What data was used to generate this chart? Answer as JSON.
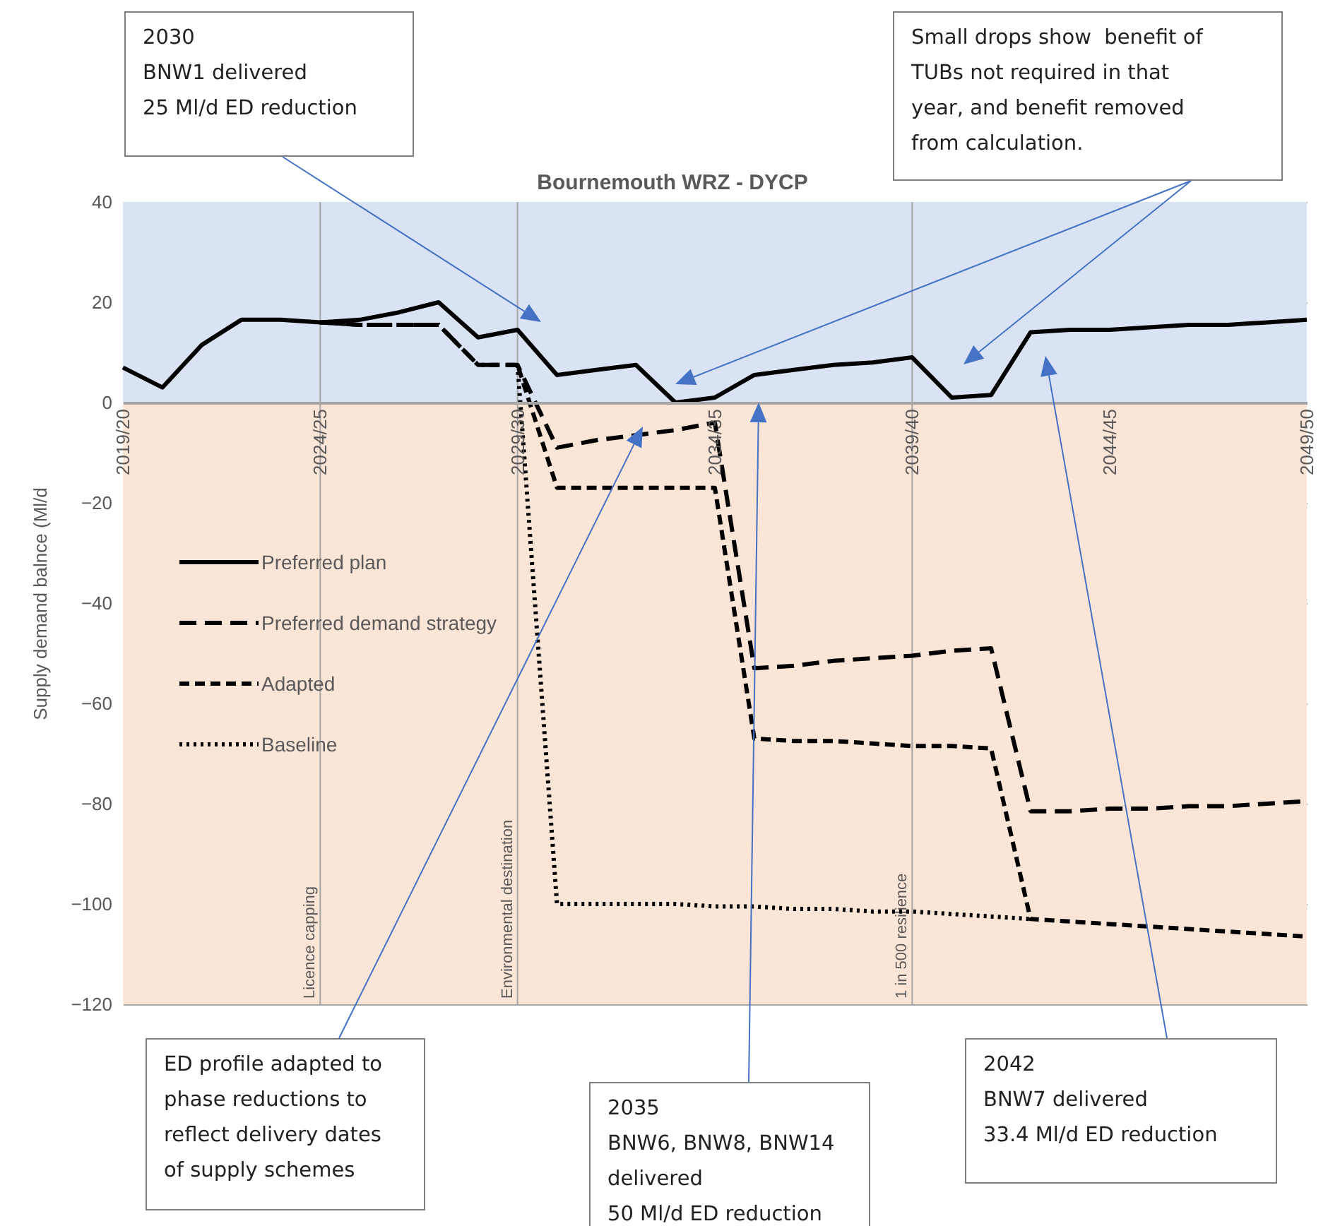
{
  "chart_data": {
    "type": "line",
    "title": "Bournemouth WRZ - DYCP",
    "ylabel": "Supply demand balnce (Ml/d",
    "categories": [
      "2019/20",
      null,
      null,
      null,
      null,
      "2024/25",
      null,
      null,
      null,
      null,
      "2029/30",
      null,
      null,
      null,
      null,
      "2034/35",
      null,
      null,
      null,
      null,
      "2039/40",
      null,
      null,
      null,
      null,
      "2044/45",
      null,
      null,
      null,
      null,
      "2049/50"
    ],
    "series": [
      {
        "name": "Preferred plan",
        "color": "#000000",
        "line_style": "solid",
        "values": [
          7,
          3,
          11.5,
          16.5,
          16.5,
          16,
          16.5,
          18,
          20,
          13,
          14.5,
          5.5,
          6.5,
          7.5,
          0,
          1,
          5.5,
          6.5,
          7.5,
          8,
          9,
          1,
          1.5,
          14,
          14.5,
          14.5,
          15,
          15.5,
          15.5,
          16,
          16.5
        ]
      },
      {
        "name": "Preferred demand strategy",
        "color": "#000000",
        "line_style": "dashed",
        "values": [
          null,
          null,
          null,
          null,
          null,
          16,
          15.5,
          15.5,
          15.5,
          7.5,
          7.5,
          -9,
          -7.5,
          -6.5,
          -5.5,
          -4,
          -53,
          -52.5,
          -51.5,
          -51,
          -50.5,
          -49.5,
          -49,
          -81.5,
          -81.5,
          -81,
          -81,
          -80.5,
          -80.5,
          -80,
          -79.5
        ]
      },
      {
        "name": "Adapted",
        "color": "#000000",
        "line_style": "dashed",
        "values": [
          null,
          null,
          null,
          null,
          null,
          16,
          15.5,
          15.5,
          15.5,
          7.5,
          7.5,
          -17,
          -17,
          -17,
          -17,
          -17,
          -67,
          -67.5,
          -67.5,
          -68,
          -68.5,
          -68.5,
          -69,
          -103,
          -103.5,
          -104,
          -104.5,
          -105,
          -105.5,
          -106,
          -106.5
        ]
      },
      {
        "name": "Baseline",
        "color": "#000000",
        "line_style": "dotted",
        "values": [
          null,
          null,
          null,
          null,
          null,
          null,
          null,
          null,
          null,
          null,
          7.5,
          -100,
          -100,
          -100,
          -100,
          -100.5,
          -100.5,
          -101,
          -101,
          -101.5,
          -101.5,
          -102,
          -102.5,
          -103,
          null,
          null,
          null,
          null,
          null,
          null,
          null
        ]
      }
    ],
    "ylim": [
      -120,
      40
    ],
    "yticks": [
      -120,
      -100,
      -80,
      -60,
      -40,
      -20,
      0,
      20,
      40
    ],
    "grid": "y",
    "legend": "left",
    "bands": [
      {
        "axis": "y",
        "from": 0,
        "to": 40,
        "color": "#dae3f3"
      },
      {
        "axis": "y",
        "from": -120,
        "to": 0,
        "color": "#fbe5d6"
      }
    ],
    "ref_lines": [
      {
        "axis": "x",
        "value": "2024/25",
        "label": "Licence capping"
      },
      {
        "axis": "x",
        "value": "2029/30",
        "label": "Environmental destination"
      },
      {
        "axis": "x",
        "value": "2039/40",
        "label": "1 in 500 resilience"
      }
    ],
    "annotations": [
      "2030\nBNW1 delivered\n25 Ml/d ED reduction",
      "Small drops show  benefit of\nTUBs not required in that\nyear, and benefit removed\nfrom calculation.",
      "ED profile adapted to\nphase reductions to\nreflect delivery dates\nof supply schemes",
      "2035\nBNW6, BNW8, BNW14\ndelivered\n50 Ml/d ED reduction",
      "2042\nBNW7 delivered\n33.4 Ml/d ED reduction"
    ]
  }
}
